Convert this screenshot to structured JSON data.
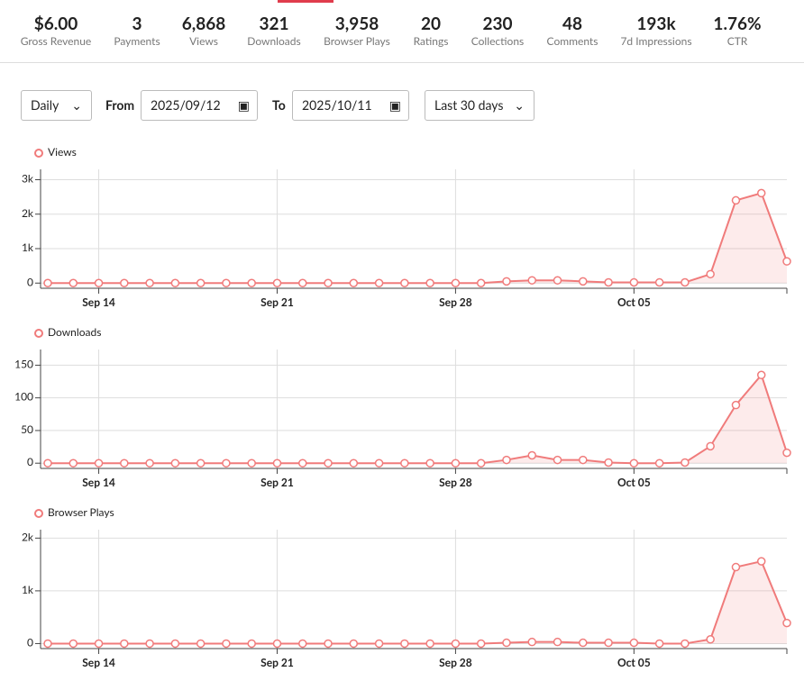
{
  "stats": [
    {
      "value": "$6.00",
      "label": "Gross Revenue"
    },
    {
      "value": "3",
      "label": "Payments"
    },
    {
      "value": "6,868",
      "label": "Views"
    },
    {
      "value": "321",
      "label": "Downloads"
    },
    {
      "value": "3,958",
      "label": "Browser Plays"
    },
    {
      "value": "20",
      "label": "Ratings"
    },
    {
      "value": "230",
      "label": "Collections"
    },
    {
      "value": "48",
      "label": "Comments"
    },
    {
      "value": "193k",
      "label": "7d Impressions"
    },
    {
      "value": "1.76%",
      "label": "CTR"
    }
  ],
  "controls": {
    "interval": "Daily",
    "from_label": "From",
    "from_date": "2025/09/12",
    "to_label": "To",
    "to_date": "2025/10/11",
    "range": "Last 30 days"
  },
  "chart_data": [
    {
      "type": "area",
      "categories": [
        null,
        null,
        "Sep 14",
        null,
        null,
        null,
        null,
        null,
        null,
        "Sep 21",
        null,
        null,
        null,
        null,
        null,
        null,
        "Sep 28",
        null,
        null,
        null,
        null,
        null,
        null,
        "Oct 05",
        null,
        null,
        null,
        null,
        null,
        null
      ],
      "series": [
        {
          "name": "Views",
          "color": "#f07b7b",
          "values": [
            0,
            0,
            0,
            0,
            0,
            0,
            0,
            0,
            0,
            0,
            0,
            0,
            0,
            0,
            0,
            0,
            0,
            0,
            50,
            80,
            80,
            50,
            20,
            20,
            20,
            20,
            260,
            2400,
            2610,
            630
          ]
        }
      ],
      "ylim": [
        -150,
        3300
      ],
      "yticks": [
        0,
        {
          "value": 1000,
          "label": "1k"
        },
        {
          "value": 2000,
          "label": "2k"
        },
        {
          "value": 3000,
          "label": "3k"
        }
      ],
      "grid": true
    },
    {
      "type": "area",
      "categories": [
        null,
        null,
        "Sep 14",
        null,
        null,
        null,
        null,
        null,
        null,
        "Sep 21",
        null,
        null,
        null,
        null,
        null,
        null,
        "Sep 28",
        null,
        null,
        null,
        null,
        null,
        null,
        "Oct 05",
        null,
        null,
        null,
        null,
        null,
        null
      ],
      "series": [
        {
          "name": "Downloads",
          "color": "#f07b7b",
          "values": [
            0,
            0,
            0,
            0,
            0,
            0,
            0,
            0,
            0,
            0,
            0,
            0,
            0,
            0,
            0,
            0,
            0,
            0,
            5,
            12,
            5,
            5,
            1,
            0,
            0,
            1,
            26,
            89,
            135,
            16
          ]
        }
      ],
      "ylim": [
        -8,
        174
      ],
      "yticks": [
        0,
        50,
        100,
        150
      ],
      "grid": true
    },
    {
      "type": "area",
      "categories": [
        null,
        null,
        "Sep 14",
        null,
        null,
        null,
        null,
        null,
        null,
        "Sep 21",
        null,
        null,
        null,
        null,
        null,
        null,
        "Sep 28",
        null,
        null,
        null,
        null,
        null,
        null,
        "Oct 05",
        null,
        null,
        null,
        null,
        null,
        null
      ],
      "series": [
        {
          "name": "Browser Plays",
          "color": "#f07b7b",
          "values": [
            0,
            0,
            0,
            0,
            0,
            0,
            0,
            0,
            0,
            0,
            0,
            0,
            0,
            0,
            0,
            0,
            0,
            0,
            15,
            30,
            30,
            15,
            15,
            15,
            0,
            0,
            80,
            1450,
            1560,
            390
          ]
        }
      ],
      "ylim": [
        -95,
        2160
      ],
      "yticks": [
        0,
        {
          "value": 1000,
          "label": "1k"
        },
        {
          "value": 2000,
          "label": "2k"
        }
      ],
      "grid": true
    }
  ]
}
